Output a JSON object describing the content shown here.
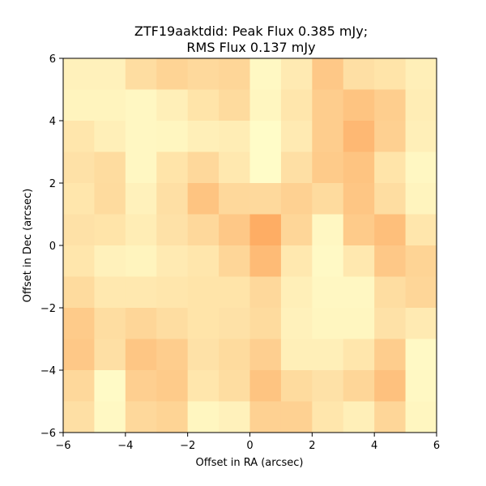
{
  "chart_data": {
    "type": "heatmap",
    "title_line1": "ZTF19aaktdid: Peak Flux 0.385 mJy;",
    "title_line2": "RMS Flux 0.137 mJy",
    "xlabel": "Offset in RA (arcsec)",
    "ylabel": "Offset in Dec (arcsec)",
    "xlim": [
      -6,
      6
    ],
    "ylim": [
      -6,
      6
    ],
    "xticks": [
      -6,
      -4,
      -2,
      0,
      2,
      4,
      6
    ],
    "yticks": [
      -6,
      -4,
      -2,
      0,
      2,
      4,
      6
    ],
    "xtick_labels": [
      "−6",
      "−4",
      "−2",
      "0",
      "2",
      "4",
      "6"
    ],
    "ytick_labels": [
      "−6",
      "−4",
      "−2",
      "0",
      "2",
      "4",
      "6"
    ],
    "cell_size_arcsec": 1,
    "colormap": "YlOrBr-like",
    "color_range": [
      "#ffffcc",
      "#fd8d3c"
    ],
    "rows_top_to_bottom": [
      [
        0.12,
        0.12,
        0.3,
        0.38,
        0.33,
        0.36,
        0.06,
        0.18,
        0.48,
        0.28,
        0.24,
        0.14
      ],
      [
        0.1,
        0.1,
        0.07,
        0.14,
        0.24,
        0.32,
        0.08,
        0.22,
        0.44,
        0.52,
        0.43,
        0.16
      ],
      [
        0.22,
        0.14,
        0.07,
        0.08,
        0.14,
        0.16,
        0.03,
        0.18,
        0.44,
        0.62,
        0.41,
        0.14
      ],
      [
        0.26,
        0.31,
        0.07,
        0.24,
        0.34,
        0.2,
        0.03,
        0.28,
        0.46,
        0.52,
        0.24,
        0.07
      ],
      [
        0.22,
        0.32,
        0.12,
        0.28,
        0.52,
        0.34,
        0.33,
        0.4,
        0.32,
        0.5,
        0.3,
        0.1
      ],
      [
        0.26,
        0.24,
        0.16,
        0.26,
        0.34,
        0.48,
        0.72,
        0.36,
        0.07,
        0.46,
        0.56,
        0.22
      ],
      [
        0.22,
        0.12,
        0.1,
        0.18,
        0.22,
        0.36,
        0.6,
        0.2,
        0.05,
        0.2,
        0.48,
        0.38
      ],
      [
        0.32,
        0.2,
        0.2,
        0.22,
        0.24,
        0.24,
        0.34,
        0.14,
        0.07,
        0.07,
        0.3,
        0.36
      ],
      [
        0.46,
        0.3,
        0.36,
        0.3,
        0.24,
        0.26,
        0.32,
        0.12,
        0.08,
        0.08,
        0.26,
        0.18
      ],
      [
        0.48,
        0.28,
        0.5,
        0.44,
        0.26,
        0.32,
        0.42,
        0.14,
        0.14,
        0.22,
        0.44,
        0.05
      ],
      [
        0.34,
        0.04,
        0.42,
        0.46,
        0.22,
        0.3,
        0.52,
        0.32,
        0.26,
        0.36,
        0.54,
        0.06
      ],
      [
        0.28,
        0.06,
        0.34,
        0.38,
        0.08,
        0.12,
        0.4,
        0.4,
        0.22,
        0.14,
        0.36,
        0.08
      ]
    ]
  }
}
